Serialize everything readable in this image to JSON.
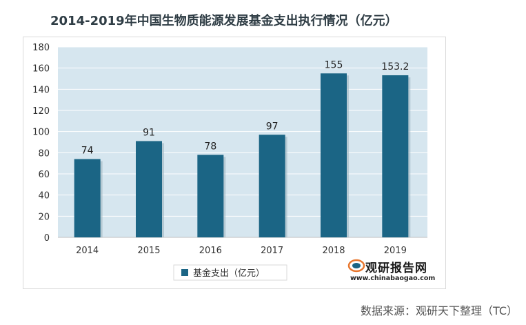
{
  "title": "2014-2019年中国生物质能源发展基金支出执行情况（亿元）",
  "source": "数据来源：观研天下整理（TC）",
  "watermark": {
    "name": "观研报告网",
    "url": "www.chinabaogao.com"
  },
  "colors": {
    "bar": "#1b6585",
    "plot_bg": "#d6e6ef",
    "grid": "#ffffff"
  },
  "chart_data": {
    "type": "bar",
    "title": "2014-2019年中国生物质能源发展基金支出执行情况（亿元）",
    "categories": [
      "2014",
      "2015",
      "2016",
      "2017",
      "2018",
      "2019"
    ],
    "series": [
      {
        "name": "基金支出（亿元）",
        "values": [
          74,
          91,
          78,
          97,
          155,
          153.2
        ],
        "labels": [
          "74",
          "91",
          "78",
          "97",
          "155",
          "153.2"
        ]
      }
    ],
    "yticks": [
      "0",
      "20",
      "40",
      "60",
      "80",
      "100",
      "120",
      "140",
      "160",
      "180"
    ],
    "ylim": [
      0,
      180
    ],
    "grid": true,
    "legend": "bottom"
  }
}
